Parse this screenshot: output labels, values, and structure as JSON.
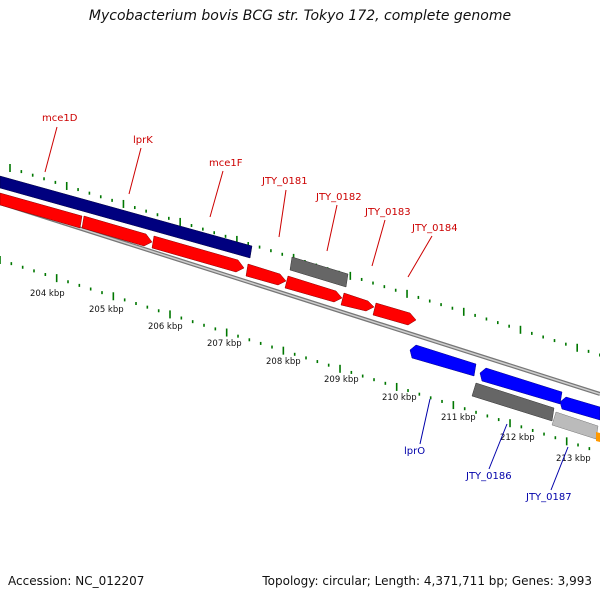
{
  "title": "Mycobacterium bovis BCG str. Tokyo 172, complete genome",
  "footer": {
    "accession": "Accession: NC_012207",
    "summary": "Topology: circular; Length: 4,371,711 bp; Genes: 3,993"
  },
  "colors": {
    "forward_gene": "#ff0000",
    "reverse_gene": "#0000ff",
    "operon_forward": "#00007f",
    "hypothetical": "#666666",
    "other": "#bbbbbb",
    "tick": "#007700",
    "backbone": "#888888",
    "label_forward": "#cc0000",
    "label_reverse": "#0000aa"
  },
  "kbp_ticks": [
    "204 kbp",
    "205 kbp",
    "206 kbp",
    "207 kbp",
    "208 kbp",
    "209 kbp",
    "210 kbp",
    "211 kbp",
    "212 kbp",
    "213 kbp"
  ],
  "upper_labels": [
    "mce1D",
    "lprK",
    "mce1F",
    "JTY_0181",
    "JTY_0182",
    "JTY_0183",
    "JTY_0184"
  ],
  "lower_labels": [
    "lprO",
    "JTY_0186",
    "JTY_0187"
  ]
}
